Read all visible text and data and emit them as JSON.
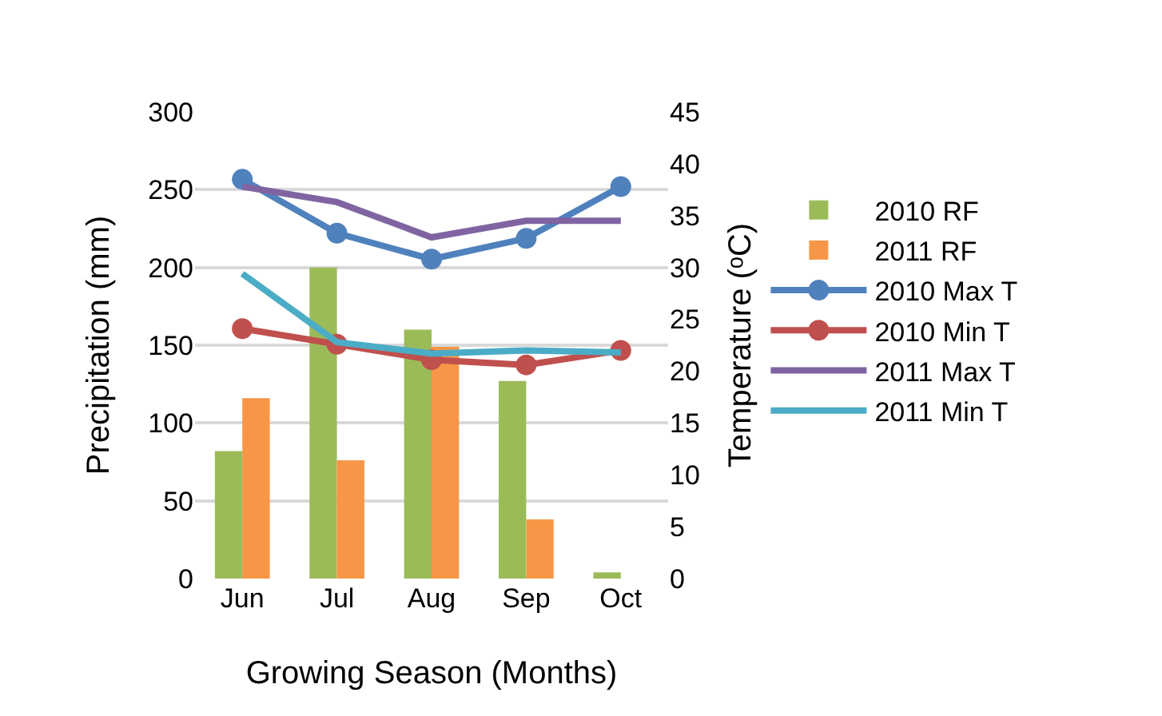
{
  "chart_data": {
    "type": "bar",
    "xlabel": "Growing Season (Months)",
    "ylabel": "Precipitation (mm)",
    "y2label": "Temperature (ᵒC)",
    "categories": [
      "Jun",
      "Jul",
      "Aug",
      "Sep",
      "Oct"
    ],
    "series": [
      {
        "name": "2010 RF",
        "color": "#9bbb59",
        "values": [
          82,
          200,
          160,
          127,
          4
        ]
      },
      {
        "name": "2011 RF",
        "color": "#f79646",
        "values": [
          116,
          76,
          149,
          38,
          0
        ]
      },
      {
        "name": "2010 Max T",
        "type": "line",
        "axis": "y2",
        "marker": "circle",
        "color": "#4f81bd",
        "values": [
          38.5,
          33.3,
          30.8,
          32.8,
          37.8
        ]
      },
      {
        "name": "2010 Min T",
        "type": "line",
        "axis": "y2",
        "marker": "circle",
        "color": "#c0504d",
        "values": [
          24.1,
          22.6,
          21.1,
          20.6,
          22.0
        ]
      },
      {
        "name": "2011 Max T",
        "type": "line",
        "axis": "y2",
        "marker": "none",
        "color": "#8064a2",
        "values": [
          37.8,
          36.3,
          32.9,
          34.5,
          34.5
        ]
      },
      {
        "name": "2011 Min T",
        "type": "line",
        "axis": "y2",
        "marker": "none",
        "color": "#4bacc6",
        "values": [
          29.4,
          22.8,
          21.7,
          22.0,
          21.8
        ]
      }
    ],
    "ylim": [
      0,
      300
    ],
    "yticks": [
      0,
      50,
      100,
      150,
      200,
      250,
      300
    ],
    "y2lim": [
      0,
      45
    ],
    "y2ticks": [
      0,
      5,
      10,
      15,
      20,
      25,
      30,
      35,
      40,
      45
    ],
    "grid": "y",
    "legend": "right"
  }
}
